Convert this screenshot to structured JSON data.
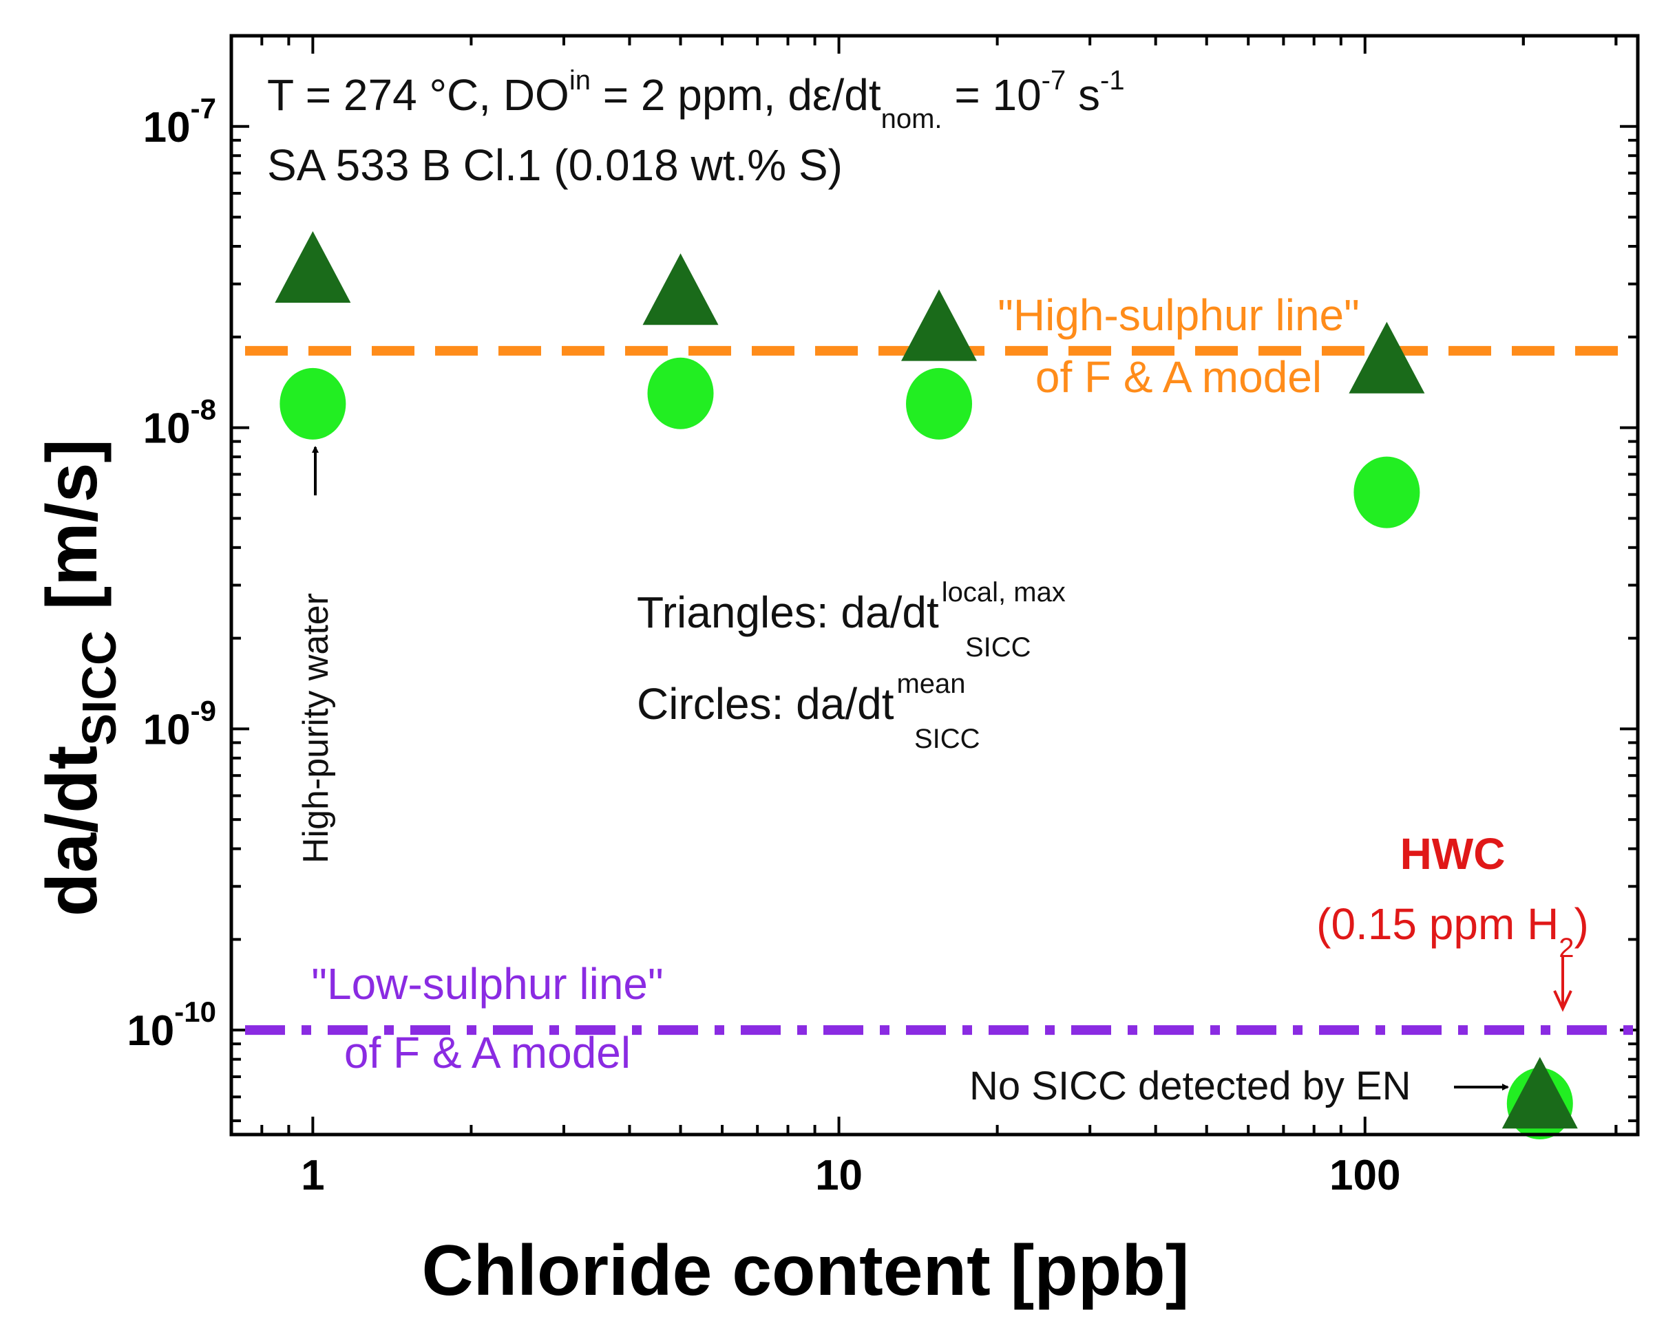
{
  "chart_data": {
    "type": "scatter",
    "xscale": "log",
    "yscale": "log",
    "xlim": [
      0.7,
      330
    ],
    "ylim": [
      4.5e-11,
      2e-07
    ],
    "xlabel": "Chloride content [ppb]",
    "ylabel_main": "da/dt",
    "ylabel_sub": "SICC",
    "ylabel_unit": "[m/s]",
    "x_ticks": [
      {
        "value": 1,
        "label": "1"
      },
      {
        "value": 10,
        "label": "10"
      },
      {
        "value": 100,
        "label": "100"
      }
    ],
    "y_ticks": [
      {
        "value": 1e-10,
        "base": "10",
        "exp": "-10"
      },
      {
        "value": 1e-09,
        "base": "10",
        "exp": "-9"
      },
      {
        "value": 1e-08,
        "base": "10",
        "exp": "-8"
      },
      {
        "value": 1e-07,
        "base": "10",
        "exp": "-7"
      }
    ],
    "series": [
      {
        "marker": "triangle",
        "color": "#1a6b1a",
        "x": [
          1,
          5,
          15.5,
          110,
          215
        ],
        "y": [
          3.2e-08,
          2.7e-08,
          2.05e-08,
          1.6e-08,
          5.8e-11
        ]
      },
      {
        "marker": "circle",
        "color": "#22ee22",
        "x": [
          1,
          5,
          15.5,
          110,
          215
        ],
        "y": [
          1.2e-08,
          1.3e-08,
          1.2e-08,
          6.1e-09,
          5.7e-11
        ]
      }
    ],
    "reference_lines": [
      {
        "y": 1.8e-08,
        "style": "dashed",
        "color": "#ff8c1a"
      },
      {
        "y": 1e-10,
        "style": "dash-dot",
        "color": "#8a2be2"
      }
    ],
    "grid": false
  },
  "annotations": {
    "conditions": {
      "part1": "T = 274 °C, DO",
      "sup1": "in",
      "part2": " = 2 ppm, dε/dt",
      "sub1": "nom.",
      "part3": " = 10",
      "sup2": "-7",
      "part4": " s",
      "sup3": "-1"
    },
    "material": "SA 533 B Cl.1 (0.018 wt.% S)",
    "high_sulphur_1": "\"High-sulphur line\"",
    "high_sulphur_2": "of F & A model",
    "low_sulphur_1": "\"Low-sulphur line\"",
    "low_sulphur_2": "of F & A model",
    "triangles_main": "Triangles: da/dt",
    "triangles_sup": "local, max",
    "triangles_sub": "SICC",
    "circles_main": "Circles: da/dt",
    "circles_sup": "mean",
    "circles_sub": "SICC",
    "high_purity": "High-purity water",
    "hwc_title": "HWC",
    "hwc_detail_main": "(0.15 ppm H",
    "hwc_detail_sub": "2",
    "hwc_detail_end": ")",
    "no_sicc": "No SICC detected by EN"
  }
}
